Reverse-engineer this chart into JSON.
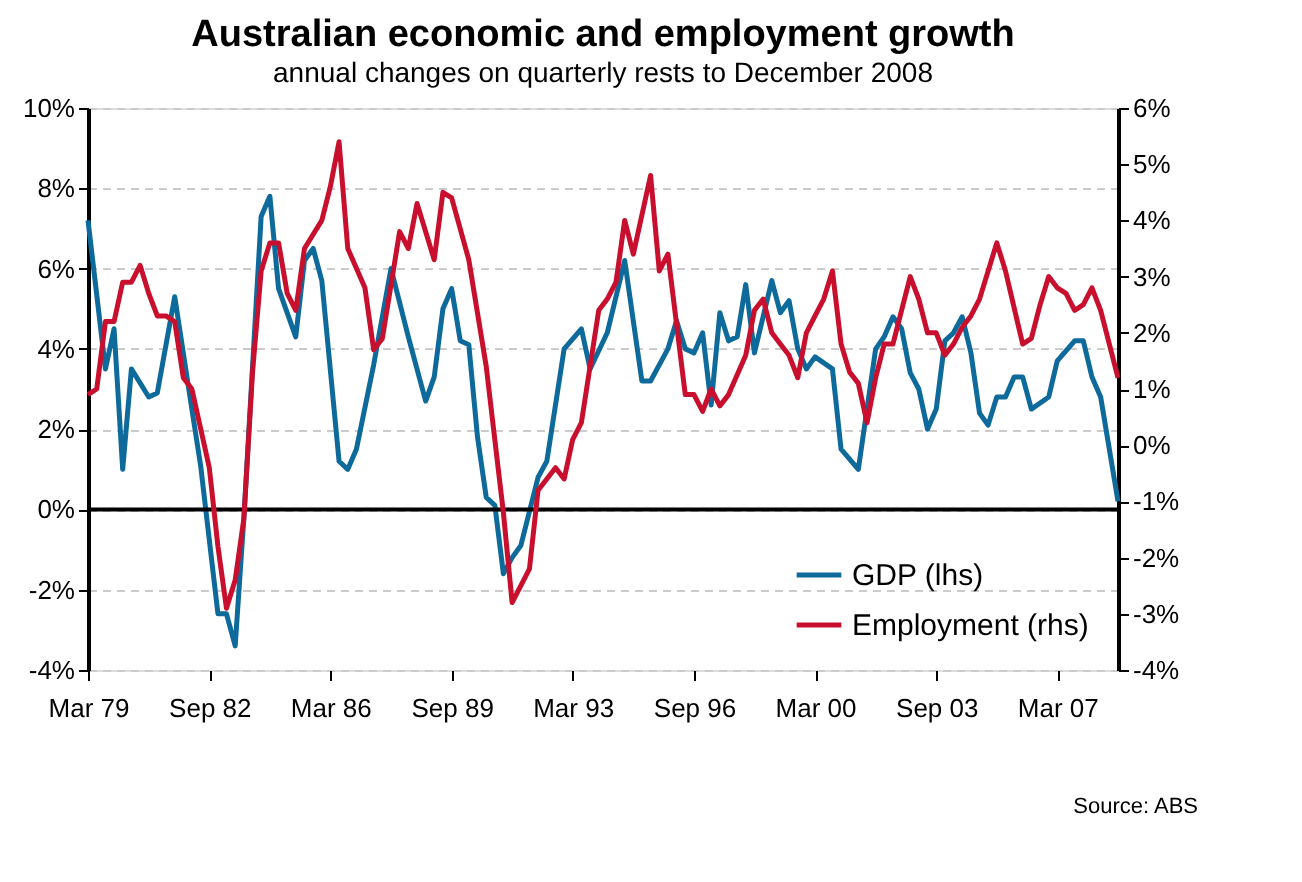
{
  "chart_data": {
    "type": "line",
    "title": "Australian economic and employment growth",
    "subtitle": "annual changes on quarterly rests to December 2008",
    "annotations": [
      "Source: ABS"
    ],
    "series": [
      {
        "name": "GDP (lhs)",
        "color": "#0f6a9c",
        "axis": "y",
        "x": [
          "1979-03",
          "1979-09",
          "1979-12",
          "1980-03",
          "1980-06",
          "1980-12",
          "1981-03",
          "1981-09",
          "1982-03",
          "1982-06",
          "1982-12",
          "1983-03",
          "1983-06",
          "1983-09",
          "1984-03",
          "1984-06",
          "1984-09",
          "1985-03",
          "1985-06",
          "1985-09",
          "1985-12",
          "1986-06",
          "1986-09",
          "1986-12",
          "1987-06",
          "1987-12",
          "1988-06",
          "1988-12",
          "1989-03",
          "1989-06",
          "1989-09",
          "1989-12",
          "1990-03",
          "1990-06",
          "1990-09",
          "1990-12",
          "1991-03",
          "1991-06",
          "1991-09",
          "1992-03",
          "1992-06",
          "1992-12",
          "1993-06",
          "1993-09",
          "1994-03",
          "1994-09",
          "1995-03",
          "1995-06",
          "1995-12",
          "1996-03",
          "1996-06",
          "1996-09",
          "1996-12",
          "1997-03",
          "1997-06",
          "1997-09",
          "1997-12",
          "1998-03",
          "1998-06",
          "1998-12",
          "1999-03",
          "1999-06",
          "1999-09",
          "1999-12",
          "2000-03",
          "2000-09",
          "2000-12",
          "2001-06",
          "2001-12",
          "2002-03",
          "2002-06",
          "2002-09",
          "2002-12",
          "2003-03",
          "2003-06",
          "2003-09",
          "2003-12",
          "2004-03",
          "2004-06",
          "2004-09",
          "2004-12",
          "2005-03",
          "2005-06",
          "2005-09",
          "2005-12",
          "2006-03",
          "2006-06",
          "2006-12",
          "2007-03",
          "2007-09",
          "2007-12",
          "2008-03",
          "2008-06",
          "2008-12"
        ],
        "values": [
          7.2,
          3.5,
          4.5,
          1.0,
          3.5,
          2.8,
          2.9,
          5.3,
          2.5,
          1.1,
          -2.6,
          -2.6,
          -3.4,
          -0.2,
          7.3,
          7.8,
          5.5,
          4.3,
          6.2,
          6.5,
          5.7,
          1.2,
          1.0,
          1.5,
          3.6,
          6.0,
          4.3,
          2.7,
          3.3,
          5.0,
          5.5,
          4.2,
          4.1,
          1.8,
          0.3,
          0.1,
          -1.6,
          -1.2,
          -0.9,
          0.8,
          1.2,
          4.0,
          4.5,
          3.5,
          4.4,
          6.2,
          3.2,
          3.2,
          4.0,
          4.7,
          4.0,
          3.9,
          4.4,
          2.6,
          4.9,
          4.2,
          4.3,
          5.6,
          3.9,
          5.7,
          4.9,
          5.2,
          4.0,
          3.5,
          3.8,
          3.5,
          1.5,
          1.0,
          4.0,
          4.3,
          4.8,
          4.5,
          3.4,
          3.0,
          2.0,
          2.5,
          4.2,
          4.4,
          4.8,
          3.9,
          2.4,
          2.1,
          2.8,
          2.8,
          3.3,
          3.3,
          2.5,
          2.8,
          3.7,
          4.2,
          4.2,
          3.3,
          2.8,
          0.2
        ]
      },
      {
        "name": "Employment (rhs)",
        "color": "#c8102e",
        "axis": "y2",
        "x": [
          "1979-03",
          "1979-06",
          "1979-09",
          "1979-12",
          "1980-03",
          "1980-06",
          "1980-09",
          "1980-12",
          "1981-03",
          "1981-06",
          "1981-09",
          "1981-12",
          "1982-03",
          "1982-09",
          "1982-12",
          "1983-03",
          "1983-06",
          "1983-09",
          "1983-12",
          "1984-03",
          "1984-06",
          "1984-09",
          "1984-12",
          "1985-03",
          "1985-06",
          "1985-12",
          "1986-03",
          "1986-06",
          "1986-09",
          "1987-03",
          "1987-06",
          "1987-09",
          "1988-03",
          "1988-06",
          "1988-09",
          "1989-03",
          "1989-06",
          "1989-09",
          "1990-03",
          "1990-09",
          "1991-03",
          "1991-06",
          "1991-12",
          "1992-03",
          "1992-09",
          "1992-12",
          "1993-03",
          "1993-06",
          "1993-12",
          "1994-03",
          "1994-06",
          "1994-09",
          "1994-12",
          "1995-06",
          "1995-09",
          "1995-12",
          "1996-06",
          "1996-09",
          "1996-12",
          "1997-03",
          "1997-06",
          "1997-09",
          "1998-03",
          "1998-06",
          "1998-09",
          "1998-12",
          "1999-03",
          "1999-06",
          "1999-09",
          "1999-12",
          "2000-03",
          "2000-06",
          "2000-09",
          "2000-12",
          "2001-03",
          "2001-06",
          "2001-09",
          "2001-12",
          "2002-03",
          "2002-06",
          "2002-12",
          "2003-03",
          "2003-06",
          "2003-09",
          "2003-12",
          "2004-03",
          "2004-06",
          "2004-09",
          "2004-12",
          "2005-06",
          "2005-09",
          "2006-03",
          "2006-06",
          "2006-09",
          "2006-12",
          "2007-03",
          "2007-06",
          "2007-09",
          "2007-12",
          "2008-03",
          "2008-06",
          "2008-12"
        ],
        "values": [
          0.9,
          1.0,
          2.2,
          2.2,
          2.9,
          2.9,
          3.2,
          2.7,
          2.3,
          2.3,
          2.2,
          1.2,
          1.0,
          -0.4,
          -1.8,
          -2.9,
          -2.4,
          -1.3,
          1.3,
          3.1,
          3.6,
          3.6,
          2.7,
          2.4,
          3.5,
          4.0,
          4.6,
          5.4,
          3.5,
          2.8,
          1.7,
          1.9,
          3.8,
          3.5,
          4.3,
          3.3,
          4.5,
          4.4,
          3.3,
          1.4,
          -1.2,
          -2.8,
          -2.2,
          -0.8,
          -0.4,
          -0.6,
          0.1,
          0.4,
          2.4,
          2.6,
          2.9,
          4.0,
          3.4,
          4.8,
          3.1,
          3.4,
          0.9,
          0.9,
          0.6,
          1.0,
          0.7,
          0.9,
          1.6,
          2.4,
          2.6,
          2.0,
          1.8,
          1.6,
          1.2,
          2.0,
          2.3,
          2.6,
          3.1,
          1.8,
          1.3,
          1.1,
          0.4,
          1.2,
          1.8,
          1.8,
          3.0,
          2.6,
          2.0,
          2.0,
          1.6,
          1.8,
          2.1,
          2.3,
          2.6,
          3.6,
          3.1,
          1.8,
          1.9,
          2.5,
          3.0,
          2.8,
          2.7,
          2.4,
          2.5,
          2.8,
          2.4,
          1.2
        ]
      }
    ],
    "xlim": [
      "1979-03",
      "2008-12"
    ],
    "xticks": [
      {
        "value": "1979-03",
        "label": "Mar 79"
      },
      {
        "value": "1982-09",
        "label": "Sep 82"
      },
      {
        "value": "1986-03",
        "label": "Mar 86"
      },
      {
        "value": "1989-09",
        "label": "Sep 89"
      },
      {
        "value": "1993-03",
        "label": "Mar 93"
      },
      {
        "value": "1996-09",
        "label": "Sep 96"
      },
      {
        "value": "2000-03",
        "label": "Mar 00"
      },
      {
        "value": "2003-09",
        "label": "Sep 03"
      },
      {
        "value": "2007-03",
        "label": "Mar 07"
      }
    ],
    "ylim": [
      -4,
      10
    ],
    "yticks": [
      {
        "value": -4,
        "label": "-4%"
      },
      {
        "value": -2,
        "label": "-2%"
      },
      {
        "value": 0,
        "label": "0%"
      },
      {
        "value": 2,
        "label": "2%"
      },
      {
        "value": 4,
        "label": "4%"
      },
      {
        "value": 6,
        "label": "6%"
      },
      {
        "value": 8,
        "label": "8%"
      },
      {
        "value": 10,
        "label": "10%"
      }
    ],
    "y2lim": [
      -4,
      6
    ],
    "y2ticks": [
      {
        "value": -4,
        "label": "-4%"
      },
      {
        "value": -3,
        "label": "-3%"
      },
      {
        "value": -2,
        "label": "-2%"
      },
      {
        "value": -1,
        "label": "-1%"
      },
      {
        "value": 0,
        "label": "0%"
      },
      {
        "value": 1,
        "label": "1%"
      },
      {
        "value": 2,
        "label": "2%"
      },
      {
        "value": 3,
        "label": "3%"
      },
      {
        "value": 4,
        "label": "4%"
      },
      {
        "value": 5,
        "label": "5%"
      },
      {
        "value": 6,
        "label": "6%"
      }
    ],
    "ref_lines": [
      {
        "axis": "y",
        "value": 0,
        "color": "#000000"
      }
    ],
    "grid": "y",
    "legend": "bottom right",
    "marker": "none",
    "line_style": "solid"
  }
}
